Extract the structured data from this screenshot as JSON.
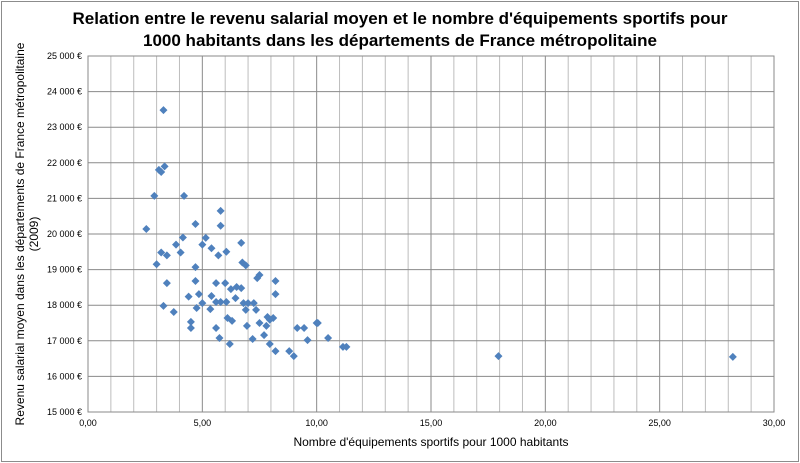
{
  "chart_data": {
    "type": "scatter",
    "title_line1": "Relation entre le revenu salarial moyen et le nombre d'équipements sportifs pour",
    "title_line2": "1000 habitants dans les départements de France métropolitaine",
    "xlabel": "Nombre d'équipements sportifs pour 1000 habitants",
    "ylabel_line1": "Revenu salarial moyen dans les départements de France métropolitaine",
    "ylabel_line2": "(2009)",
    "xlim": [
      0,
      30
    ],
    "ylim": [
      15000,
      25000
    ],
    "grid": true,
    "legend": "none",
    "marker_color": "#4f81bd",
    "x_ticks": [
      "0,00",
      "5,00",
      "10,00",
      "15,00",
      "20,00",
      "25,00",
      "30,00"
    ],
    "y_ticks": [
      "15 000 €",
      "16 000 €",
      "17 000 €",
      "18 000 €",
      "19 000 €",
      "20 000 €",
      "21 000 €",
      "22 000 €",
      "23 000 €",
      "24 000 €",
      "25 000 €"
    ],
    "points": [
      [
        3.3,
        23480
      ],
      [
        3.1,
        21800
      ],
      [
        3.2,
        21740
      ],
      [
        3.35,
        21900
      ],
      [
        2.9,
        21070
      ],
      [
        4.2,
        21070
      ],
      [
        2.55,
        20140
      ],
      [
        4.7,
        20280
      ],
      [
        5.8,
        20650
      ],
      [
        5.8,
        20230
      ],
      [
        4.15,
        19900
      ],
      [
        5.0,
        19700
      ],
      [
        5.15,
        19890
      ],
      [
        3.85,
        19700
      ],
      [
        3.2,
        19480
      ],
      [
        3.45,
        19400
      ],
      [
        4.05,
        19480
      ],
      [
        3.0,
        19150
      ],
      [
        5.4,
        19600
      ],
      [
        5.7,
        19400
      ],
      [
        6.05,
        19500
      ],
      [
        6.7,
        19750
      ],
      [
        6.75,
        19200
      ],
      [
        6.9,
        19120
      ],
      [
        7.5,
        18850
      ],
      [
        7.4,
        18760
      ],
      [
        8.2,
        18680
      ],
      [
        4.7,
        19070
      ],
      [
        3.45,
        18620
      ],
      [
        4.7,
        18680
      ],
      [
        5.6,
        18620
      ],
      [
        6.0,
        18620
      ],
      [
        6.25,
        18450
      ],
      [
        6.5,
        18510
      ],
      [
        6.7,
        18480
      ],
      [
        5.4,
        18260
      ],
      [
        4.4,
        18240
      ],
      [
        4.85,
        18310
      ],
      [
        8.2,
        18310
      ],
      [
        5.0,
        18060
      ],
      [
        4.75,
        17920
      ],
      [
        5.35,
        17890
      ],
      [
        5.6,
        18090
      ],
      [
        5.8,
        18090
      ],
      [
        6.05,
        18090
      ],
      [
        6.45,
        18200
      ],
      [
        6.8,
        18060
      ],
      [
        7.0,
        18060
      ],
      [
        7.25,
        18060
      ],
      [
        7.35,
        17870
      ],
      [
        6.9,
        17870
      ],
      [
        3.3,
        17980
      ],
      [
        3.75,
        17810
      ],
      [
        6.1,
        17640
      ],
      [
        6.3,
        17560
      ],
      [
        6.95,
        17420
      ],
      [
        7.5,
        17500
      ],
      [
        7.85,
        17670
      ],
      [
        8.1,
        17640
      ],
      [
        7.8,
        17420
      ],
      [
        7.95,
        17590
      ],
      [
        4.5,
        17530
      ],
      [
        4.5,
        17360
      ],
      [
        5.6,
        17360
      ],
      [
        5.75,
        17080
      ],
      [
        6.2,
        16910
      ],
      [
        7.2,
        17050
      ],
      [
        7.7,
        17160
      ],
      [
        7.95,
        16910
      ],
      [
        8.2,
        16710
      ],
      [
        8.8,
        16710
      ],
      [
        9.0,
        16570
      ],
      [
        9.15,
        17360
      ],
      [
        9.45,
        17360
      ],
      [
        9.6,
        17020
      ],
      [
        10.0,
        17500
      ],
      [
        10.05,
        17500
      ],
      [
        10.5,
        17080
      ],
      [
        11.15,
        16830
      ],
      [
        11.3,
        16830
      ],
      [
        17.95,
        16570
      ],
      [
        28.2,
        16550
      ]
    ]
  }
}
